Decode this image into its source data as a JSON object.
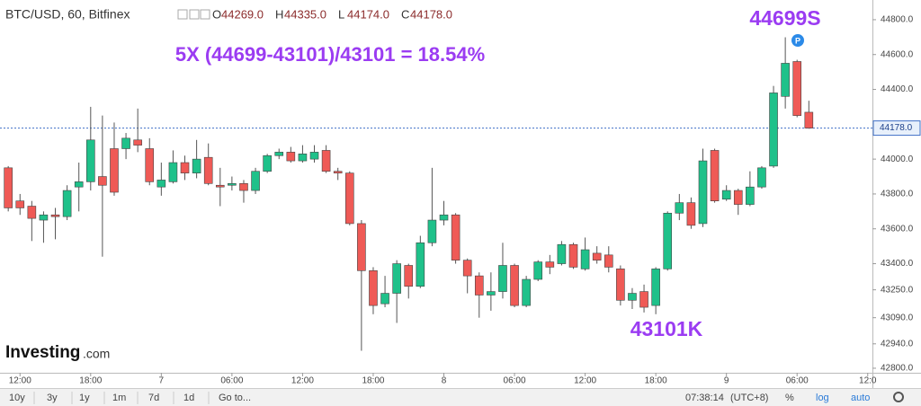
{
  "header": {
    "symbol": "BTC/USD, 60, Bitfinex",
    "ohlc": [
      {
        "key": "O",
        "value": "44269.0"
      },
      {
        "key": "H",
        "value": "44335.0"
      },
      {
        "key": "L",
        "value": "44174.0"
      },
      {
        "key": "C",
        "value": "44178.0"
      }
    ]
  },
  "logo": {
    "brand": "Investing",
    "suffix": ".com"
  },
  "toolbar": {
    "ranges": [
      "10y",
      "3y",
      "1y",
      "1m",
      "7d",
      "1d"
    ],
    "goto": "Go to...",
    "time": "07:38:14",
    "timezone": "(UTC+8)",
    "options": [
      "%",
      "log",
      "auto"
    ]
  },
  "chart_data": {
    "type": "candlestick",
    "up_color": "#1fc18a",
    "down_color": "#ef5a56",
    "x": [
      -1,
      0,
      1,
      2,
      3,
      4,
      5,
      6,
      7,
      8,
      9,
      10,
      11,
      12,
      13,
      14,
      15,
      16,
      17,
      18,
      19,
      20,
      21,
      22,
      23,
      24,
      25,
      26,
      27,
      28,
      29,
      30,
      31,
      32,
      33,
      34,
      35,
      36,
      37,
      38,
      39,
      40,
      41,
      42,
      43,
      44,
      45,
      46,
      47,
      48,
      49,
      50,
      51,
      52,
      53,
      54,
      55,
      56,
      57,
      58,
      59,
      60,
      61,
      62,
      63,
      64,
      65,
      66,
      67
    ],
    "open": [
      43950,
      43760,
      43730,
      43650,
      43680,
      43670,
      43840,
      43870,
      43900,
      44060,
      44060,
      44110,
      44060,
      43840,
      43870,
      43980,
      43920,
      44010,
      43850,
      43850,
      43860,
      43820,
      43930,
      44020,
      44040,
      43990,
      44000,
      44050,
      43930,
      43920,
      43630,
      43360,
      43170,
      43230,
      43390,
      43270,
      43520,
      43650,
      43680,
      43420,
      43330,
      43220,
      43240,
      43390,
      43160,
      43310,
      43410,
      43400,
      43510,
      43370,
      43460,
      43450,
      43370,
      43190,
      43240,
      43160,
      43370,
      43690,
      43750,
      43630,
      44050,
      43770,
      43820,
      43740,
      43840,
      43960,
      44360,
      44560,
      44269
    ],
    "high": [
      43960,
      43800,
      43760,
      43700,
      43720,
      43850,
      43980,
      44300,
      44250,
      44210,
      44150,
      44290,
      44120,
      43980,
      44050,
      44020,
      44110,
      44090,
      43950,
      43900,
      43880,
      43950,
      44030,
      44060,
      44070,
      44080,
      44080,
      44080,
      43950,
      43930,
      43650,
      43380,
      43330,
      43420,
      43400,
      43560,
      43950,
      43760,
      43690,
      43430,
      43350,
      43350,
      43520,
      43400,
      43330,
      43420,
      43450,
      43530,
      43520,
      43550,
      43500,
      43500,
      43390,
      43260,
      43280,
      43380,
      43700,
      43800,
      43780,
      44060,
      44060,
      43850,
      43830,
      43930,
      43960,
      44420,
      44699,
      44570,
      44335
    ],
    "low": [
      43700,
      43680,
      43530,
      43520,
      43540,
      43650,
      43700,
      43820,
      43440,
      43790,
      44000,
      44040,
      43850,
      43790,
      43860,
      43880,
      43890,
      43850,
      43730,
      43820,
      43750,
      43800,
      43920,
      44000,
      43980,
      43980,
      43980,
      43920,
      43880,
      43620,
      42900,
      43110,
      43150,
      43060,
      43200,
      43260,
      43500,
      43620,
      43400,
      43230,
      43090,
      43130,
      43200,
      43150,
      43150,
      43300,
      43340,
      43390,
      43370,
      43360,
      43400,
      43350,
      43160,
      43140,
      43120,
      43110,
      43360,
      43650,
      43600,
      43610,
      43750,
      43760,
      43680,
      43730,
      43830,
      43950,
      44290,
      44240,
      44174
    ],
    "close": [
      43720,
      43720,
      43660,
      43680,
      43670,
      43820,
      43870,
      44110,
      43850,
      43810,
      44120,
      44080,
      43870,
      43880,
      43980,
      43920,
      44000,
      43860,
      43840,
      43860,
      43820,
      43930,
      44020,
      44040,
      43990,
      44030,
      44040,
      43930,
      43920,
      43630,
      43360,
      43160,
      43230,
      43400,
      43270,
      43520,
      43650,
      43680,
      43420,
      43330,
      43220,
      43240,
      43390,
      43160,
      43310,
      43410,
      43380,
      43510,
      43380,
      43480,
      43420,
      43380,
      43190,
      43230,
      43150,
      43370,
      43690,
      43750,
      43620,
      43990,
      43760,
      43820,
      43740,
      43840,
      43950,
      44380,
      44550,
      44250,
      44178
    ],
    "xlim": [
      -1.7,
      72.4
    ],
    "xticks": [
      {
        "value": 0,
        "label": "12:00"
      },
      {
        "value": 6,
        "label": "18:00"
      },
      {
        "value": 12,
        "label": "7"
      },
      {
        "value": 18,
        "label": "06:00"
      },
      {
        "value": 24,
        "label": "12:00"
      },
      {
        "value": 30,
        "label": "18:00"
      },
      {
        "value": 36,
        "label": "8"
      },
      {
        "value": 42,
        "label": "06:00"
      },
      {
        "value": 48,
        "label": "12:00"
      },
      {
        "value": 54,
        "label": "18:00"
      },
      {
        "value": 60,
        "label": "9"
      },
      {
        "value": 66,
        "label": "06:00"
      },
      {
        "value": 72,
        "label": "12:0"
      }
    ],
    "ylim": [
      42774,
      44913
    ],
    "yticks": [
      {
        "value": 44800,
        "label": "44800.0"
      },
      {
        "value": 44600,
        "label": "44600.0"
      },
      {
        "value": 44400,
        "label": "44400.0"
      },
      {
        "value": 44000,
        "label": "44000.0"
      },
      {
        "value": 43800,
        "label": "43800.0"
      },
      {
        "value": 43600,
        "label": "43600.0"
      },
      {
        "value": 43400,
        "label": "43400.0"
      },
      {
        "value": 43250,
        "label": "43250.0"
      },
      {
        "value": 43090,
        "label": "43090.0"
      },
      {
        "value": 42940,
        "label": "42940.0"
      },
      {
        "value": 42800,
        "label": "42800.0"
      }
    ],
    "last_price": {
      "value": 44178,
      "label": "44178.0"
    },
    "annotations": {
      "formula": "5X (44699-43101)/43101 = 18.54%",
      "high_label": "44699S",
      "low_label": "43101K",
      "marker": "P"
    },
    "annotation_color": "#9b3cf2"
  }
}
